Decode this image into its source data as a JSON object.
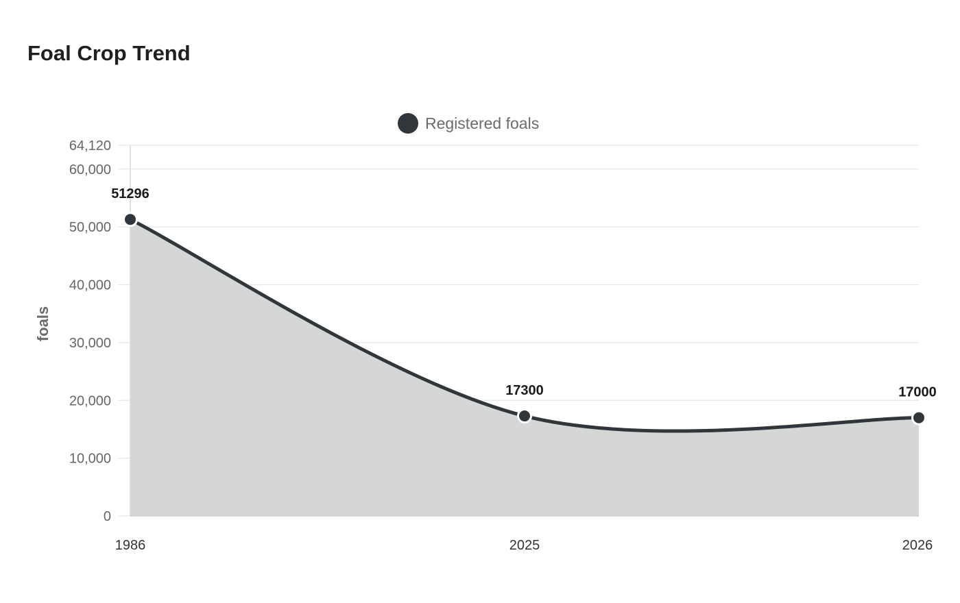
{
  "title": "Foal Crop Trend",
  "chart_data": {
    "type": "area",
    "title": "Foal Crop Trend",
    "categories": [
      "1986",
      "2025",
      "2026"
    ],
    "series": [
      {
        "name": "Registered foals",
        "values": [
          51296,
          17300,
          17000
        ]
      }
    ],
    "xlabel": "",
    "ylabel": "foals",
    "ylim": [
      0,
      64120
    ],
    "yticks": [
      "0",
      "10,000",
      "20,000",
      "30,000",
      "40,000",
      "50,000",
      "60,000",
      "64,120"
    ],
    "ytick_values": [
      0,
      10000,
      20000,
      30000,
      40000,
      50000,
      60000,
      64120
    ],
    "data_labels": [
      "51296",
      "17300",
      "17000"
    ],
    "grid": true,
    "legend": "top-center",
    "colors": {
      "line": "#30363a",
      "fill": "#d5d6d6",
      "grid": "#e6e6e6"
    }
  }
}
